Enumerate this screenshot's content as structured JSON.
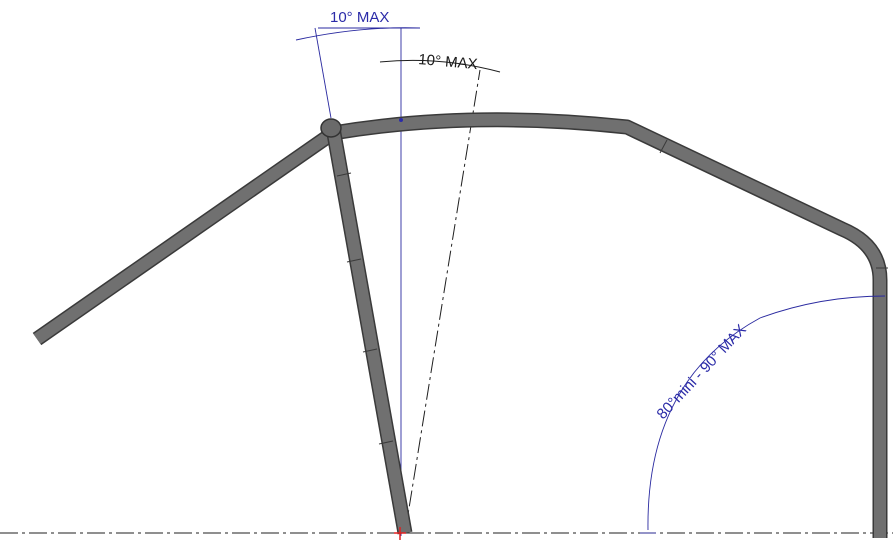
{
  "annotations": {
    "top_blue_angle": "10° MAX",
    "top_black_angle": "10° MAX",
    "corner_angle": "80°mini - 90° MAX"
  },
  "colors": {
    "background": "#ffffff",
    "tube_fill": "#707070",
    "tube_outline": "#3a3a3a",
    "dimension_blue": "#2b2ba8",
    "axis_black": "#1f1f1f",
    "origin_mark": "#e02020"
  }
}
